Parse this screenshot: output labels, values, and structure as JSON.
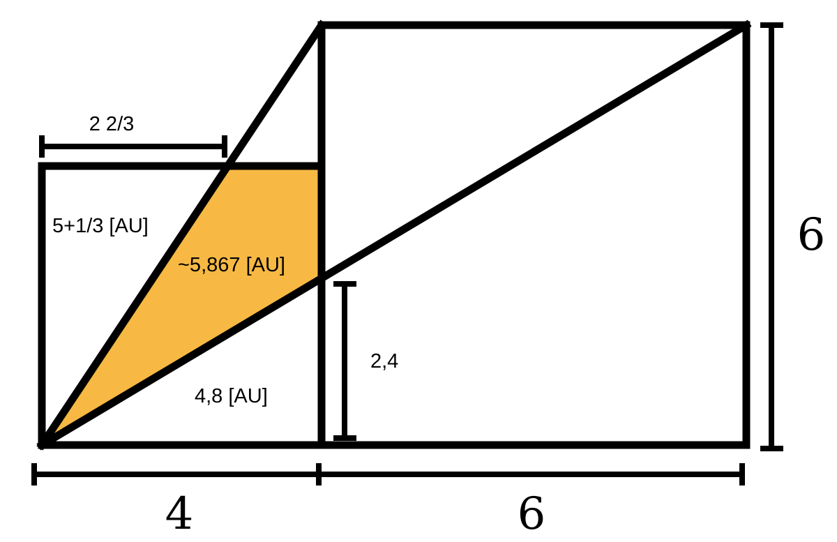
{
  "labels": {
    "top_left_measure": "2 2/3",
    "left_triangle_area": "5+1/3 [AU]",
    "shaded_area": "~5,867 [AU]",
    "bottom_triangle_area": "4,8 [AU]",
    "intersection_height": "2,4",
    "right_height": "6",
    "bottom_left_width": "4",
    "bottom_right_width": "6"
  },
  "colors": {
    "shaded_fill": "#F7B944",
    "stroke": "#000000",
    "background": "#FFFFFF"
  }
}
